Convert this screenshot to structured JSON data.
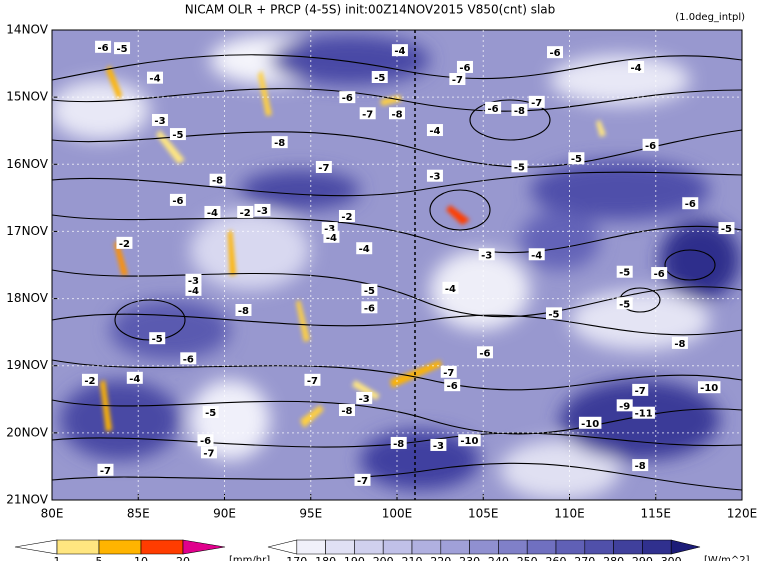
{
  "chart_data": {
    "type": "hovmoller",
    "title": "NICAM  OLR + PRCP (4-5S) init:00Z14NOV2015  V850(cnt) slab",
    "subtitle": "(1.0deg_intpl)",
    "xlim": [
      80,
      120
    ],
    "xticks": [
      {
        "value": 80,
        "label": "80E"
      },
      {
        "value": 85,
        "label": "85E"
      },
      {
        "value": 90,
        "label": "90E"
      },
      {
        "value": 95,
        "label": "95E"
      },
      {
        "value": 100,
        "label": "100E"
      },
      {
        "value": 105,
        "label": "105E"
      },
      {
        "value": 110,
        "label": "110E"
      },
      {
        "value": 115,
        "label": "115E"
      },
      {
        "value": 120,
        "label": "120E"
      }
    ],
    "ylim": [
      14,
      21
    ],
    "yticks": [
      {
        "value": 14,
        "label": "14NOV"
      },
      {
        "value": 15,
        "label": "15NOV"
      },
      {
        "value": 16,
        "label": "16NOV"
      },
      {
        "value": 17,
        "label": "17NOV"
      },
      {
        "value": 18,
        "label": "18NOV"
      },
      {
        "value": 19,
        "label": "19NOV"
      },
      {
        "value": 20,
        "label": "20NOV"
      },
      {
        "value": 21,
        "label": "21NOV"
      }
    ],
    "contour_labels": {
      "x": [
        82.96,
        84.06,
        85.97,
        100.17,
        99.0,
        103.94,
        103.5,
        109.16,
        113.86,
        97.12,
        98.3,
        100.0,
        86.26,
        87.3,
        93.2,
        107.1,
        108.1,
        105.57,
        102.2,
        107.1,
        110.4,
        114.7,
        95.76,
        102.2,
        89.6,
        87.3,
        89.3,
        91.2,
        92.2,
        97.1,
        96.1,
        96.2,
        84.2,
        117.0,
        119.1,
        98.1,
        105.2,
        108.1,
        113.2,
        115.2,
        88.2,
        88.2,
        98.4,
        103.1,
        98.4,
        91.1,
        109.1,
        113.2,
        86.1,
        87.9,
        116.4,
        105.1,
        84.8,
        82.2,
        95.1,
        103.0,
        103.2,
        118.1,
        114.1,
        98.1,
        97.1,
        89.2,
        113.2,
        114.3,
        111.2,
        104.2,
        88.9,
        89.1,
        100.1,
        102.4,
        83.1,
        114.1,
        98.0
      ],
      "y": [
        14.25,
        14.27,
        14.71,
        14.3,
        14.7,
        14.55,
        14.73,
        14.33,
        14.55,
        15.0,
        15.24,
        15.24,
        15.34,
        15.55,
        15.67,
        15.19,
        15.07,
        15.16,
        15.49,
        16.03,
        15.91,
        15.71,
        16.04,
        16.17,
        16.23,
        16.53,
        16.71,
        16.71,
        16.68,
        16.77,
        16.95,
        17.08,
        17.17,
        16.58,
        16.95,
        17.25,
        17.34,
        17.34,
        17.6,
        17.62,
        17.72,
        17.87,
        17.87,
        17.84,
        18.13,
        18.17,
        18.22,
        18.07,
        18.59,
        18.89,
        18.66,
        18.8,
        19.18,
        19.21,
        19.21,
        19.09,
        19.29,
        19.32,
        19.36,
        19.48,
        19.66,
        19.69,
        19.59,
        19.7,
        19.85,
        20.11,
        20.11,
        20.29,
        20.15,
        20.18,
        20.55,
        20.48,
        20.7
      ],
      "values": [
        -6,
        -5,
        -4,
        -4,
        -5,
        -6,
        -7,
        -6,
        -4,
        -6,
        -7,
        -8,
        -3,
        -5,
        -8,
        -8,
        -7,
        -6,
        -4,
        -5,
        -5,
        -6,
        -7,
        -3,
        -8,
        -6,
        -4,
        -2,
        -3,
        -2,
        -3,
        -4,
        -2,
        -6,
        -5,
        -4,
        -3,
        -4,
        -5,
        -6,
        -3,
        -4,
        -5,
        -4,
        -6,
        -8,
        -5,
        -5,
        -5,
        -6,
        -8,
        -6,
        -4,
        -2,
        -7,
        -7,
        -6,
        -10,
        -7,
        -3,
        -8,
        -5,
        -9,
        -11,
        -10,
        -10,
        -6,
        -7,
        -8,
        -3,
        -7,
        -8,
        -7
      ]
    },
    "colorbars": [
      {
        "levels": [
          1,
          5,
          10,
          20
        ],
        "colors": [
          "#ffffff",
          "#ffe680",
          "#ffb400",
          "#ff3c00",
          "#e0008c"
        ],
        "unit": "[mm/hr]"
      },
      {
        "levels": [
          170,
          180,
          190,
          200,
          210,
          220,
          230,
          240,
          250,
          260,
          270,
          280,
          290,
          300
        ],
        "colors": [
          "#ffffff",
          "#f0f0fa",
          "#e0e0f4",
          "#d0d0ee",
          "#c0c0e8",
          "#b0b0e0",
          "#a0a0d8",
          "#9090d0",
          "#8080c8",
          "#7070c0",
          "#6060b6",
          "#5050aa",
          "#40409c",
          "#30308e",
          "#1c1c78"
        ],
        "unit": "[W/m^2]"
      }
    ]
  }
}
